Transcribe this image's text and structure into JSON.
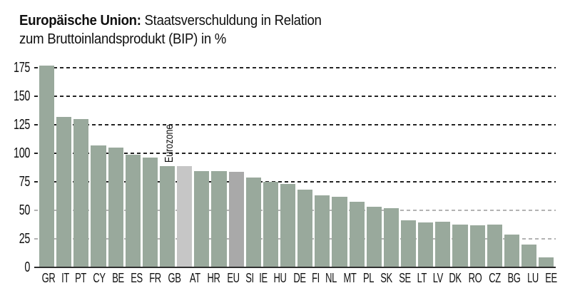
{
  "title": {
    "bold": "Europäische Union:",
    "line1_rest": " Staatsverschuldung in Relation",
    "line2": "zum Bruttoinlandsprodukt (BIP) in %"
  },
  "eurozone_label": "Eurozone",
  "colors": {
    "bar": "#99a99c",
    "eurozone_bar": "#c6c6c6",
    "eu_bar": "#a9a9a9",
    "grid_dark": "#242424",
    "grid_light": "#b3b3b3",
    "baseline": "#2f2f2f",
    "text": "#101010",
    "background": "#ffffff"
  },
  "chart_data": {
    "type": "bar",
    "title": "Europäische Union: Staatsverschuldung in Relation zum Bruttoinlandsprodukt (BIP) in %",
    "xlabel": "",
    "ylabel": "",
    "ylim": [
      0,
      175
    ],
    "yticks": [
      0,
      25,
      50,
      75,
      100,
      125,
      150,
      175
    ],
    "grid": "horizontal dashed, drawn behind bars",
    "legend": "none",
    "categories": [
      "GR",
      "IT",
      "PT",
      "CY",
      "BE",
      "ES",
      "FR",
      "GB",
      "Eurozone",
      "AT",
      "HR",
      "EU",
      "SI",
      "IE",
      "HU",
      "DE",
      "FI",
      "NL",
      "MT",
      "PL",
      "SK",
      "SE",
      "LT",
      "LV",
      "DK",
      "RO",
      "CZ",
      "BG",
      "LU",
      "EE"
    ],
    "values": [
      177,
      132,
      130,
      107,
      105,
      99,
      96,
      89,
      88.5,
      84.5,
      84.5,
      83.5,
      79,
      75,
      73,
      68,
      63,
      62,
      57.5,
      53,
      52,
      41,
      39.5,
      40,
      37.5,
      37,
      37.5,
      29,
      20,
      9
    ],
    "highlights": [
      {
        "category": "Eurozone",
        "style": "light gray bar with vertical label above, no x-axis label"
      },
      {
        "category": "EU",
        "style": "medium gray bar"
      }
    ]
  }
}
